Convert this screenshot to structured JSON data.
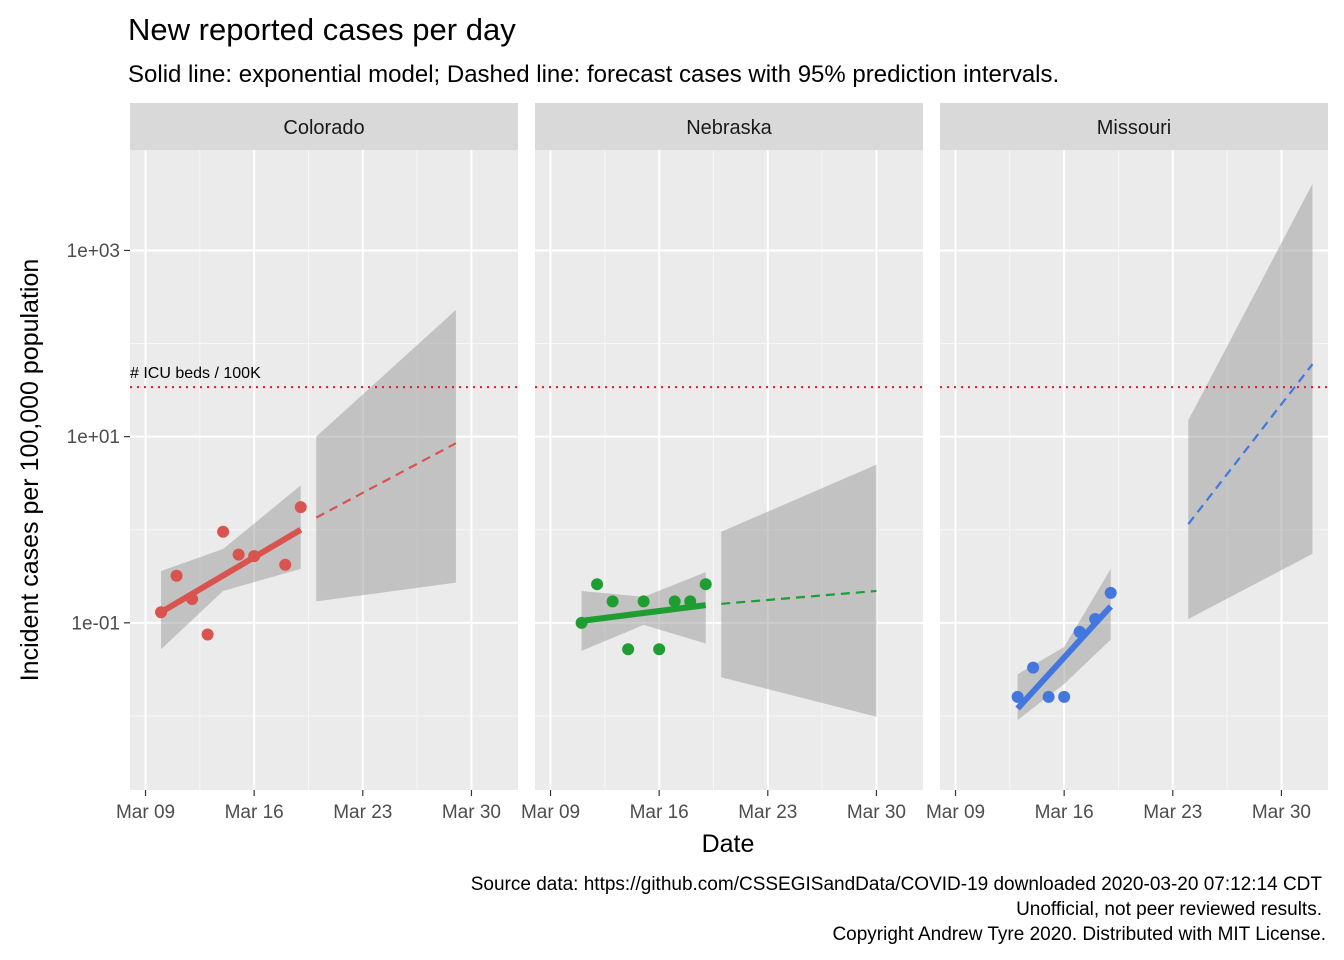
{
  "title": "New reported cases per day",
  "subtitle": "Solid line: exponential model; Dashed line: forecast cases with 95% prediction intervals.",
  "caption": [
    "Source data: https://github.com/CSSEGISandData/COVID-19 downloaded  2020-03-20 07:12:14 CDT",
    "Unofficial, not peer reviewed results.",
    "Copyright Andrew Tyre 2020. Distributed with MIT License."
  ],
  "chart_data": {
    "type": "scatter",
    "xlabel": "Date",
    "ylabel": "Incident cases per 100,000 population",
    "y_scale": "log10",
    "ylim": [
      0.0016,
      12000
    ],
    "y_ticks": [
      0.1,
      10,
      1000
    ],
    "y_tick_labels": [
      "1e-01",
      "1e+01",
      "1e+03"
    ],
    "xlim": [
      "2020-03-08",
      "2020-04-02"
    ],
    "x_ticks": [
      "2020-03-09",
      "2020-03-16",
      "2020-03-23",
      "2020-03-30"
    ],
    "x_tick_labels": [
      "Mar 09",
      "Mar 16",
      "Mar 23",
      "Mar 30"
    ],
    "grid": true,
    "reference_line": {
      "label": "# ICU beds / 100K",
      "y": 34,
      "color": "#e41a1c",
      "style": "dotted"
    },
    "panels": [
      {
        "name": "Colorado",
        "color": "#d9534f",
        "points": [
          {
            "x": "2020-03-10",
            "y": 0.13
          },
          {
            "x": "2020-03-11",
            "y": 0.32
          },
          {
            "x": "2020-03-12",
            "y": 0.18
          },
          {
            "x": "2020-03-13",
            "y": 0.075
          },
          {
            "x": "2020-03-14",
            "y": 0.95
          },
          {
            "x": "2020-03-15",
            "y": 0.54
          },
          {
            "x": "2020-03-16",
            "y": 0.52
          },
          {
            "x": "2020-03-18",
            "y": 0.42
          },
          {
            "x": "2020-03-19",
            "y": 1.75
          }
        ],
        "fit": [
          {
            "x": "2020-03-10",
            "y": 0.13
          },
          {
            "x": "2020-03-19",
            "y": 1.0
          }
        ],
        "fit_ci": [
          {
            "x": "2020-03-10",
            "lo": 0.052,
            "hi": 0.36
          },
          {
            "x": "2020-03-14",
            "lo": 0.22,
            "hi": 0.62
          },
          {
            "x": "2020-03-19",
            "lo": 0.38,
            "hi": 3.0
          }
        ],
        "forecast": [
          {
            "x": "2020-03-20",
            "y": 1.35
          },
          {
            "x": "2020-03-29",
            "y": 8.5
          }
        ],
        "forecast_pi": [
          {
            "x": "2020-03-20",
            "lo": 0.17,
            "hi": 10.0
          },
          {
            "x": "2020-03-29",
            "lo": 0.27,
            "hi": 230
          }
        ]
      },
      {
        "name": "Nebraska",
        "color": "#1e9e32",
        "points": [
          {
            "x": "2020-03-11",
            "y": 0.1
          },
          {
            "x": "2020-03-12",
            "y": 0.26
          },
          {
            "x": "2020-03-13",
            "y": 0.17
          },
          {
            "x": "2020-03-14",
            "y": 0.052
          },
          {
            "x": "2020-03-15",
            "y": 0.17
          },
          {
            "x": "2020-03-16",
            "y": 0.052
          },
          {
            "x": "2020-03-17",
            "y": 0.17
          },
          {
            "x": "2020-03-18",
            "y": 0.17
          },
          {
            "x": "2020-03-19",
            "y": 0.26
          }
        ],
        "fit": [
          {
            "x": "2020-03-11",
            "y": 0.105
          },
          {
            "x": "2020-03-19",
            "y": 0.155
          }
        ],
        "fit_ci": [
          {
            "x": "2020-03-11",
            "lo": 0.05,
            "hi": 0.22
          },
          {
            "x": "2020-03-15",
            "lo": 0.095,
            "hi": 0.19
          },
          {
            "x": "2020-03-19",
            "lo": 0.06,
            "hi": 0.35
          }
        ],
        "forecast": [
          {
            "x": "2020-03-20",
            "y": 0.16
          },
          {
            "x": "2020-03-30",
            "y": 0.22
          }
        ],
        "forecast_pi": [
          {
            "x": "2020-03-20",
            "lo": 0.026,
            "hi": 0.95
          },
          {
            "x": "2020-03-30",
            "lo": 0.0098,
            "hi": 5.0
          }
        ]
      },
      {
        "name": "Missouri",
        "color": "#4477dd",
        "points": [
          {
            "x": "2020-03-13",
            "y": 0.016
          },
          {
            "x": "2020-03-14",
            "y": 0.033
          },
          {
            "x": "2020-03-15",
            "y": 0.016
          },
          {
            "x": "2020-03-16",
            "y": 0.016
          },
          {
            "x": "2020-03-17",
            "y": 0.08
          },
          {
            "x": "2020-03-18",
            "y": 0.11
          },
          {
            "x": "2020-03-19",
            "y": 0.21
          }
        ],
        "fit": [
          {
            "x": "2020-03-13",
            "y": 0.012
          },
          {
            "x": "2020-03-19",
            "y": 0.15
          }
        ],
        "fit_ci": [
          {
            "x": "2020-03-13",
            "lo": 0.009,
            "hi": 0.028
          },
          {
            "x": "2020-03-16",
            "lo": 0.022,
            "hi": 0.055
          },
          {
            "x": "2020-03-19",
            "lo": 0.066,
            "hi": 0.38
          }
        ],
        "forecast": [
          {
            "x": "2020-03-24",
            "y": 1.15
          },
          {
            "x": "2020-04-01",
            "y": 60
          }
        ],
        "forecast_pi": [
          {
            "x": "2020-03-24",
            "lo": 0.11,
            "hi": 15
          },
          {
            "x": "2020-04-01",
            "lo": 0.55,
            "hi": 5200
          }
        ]
      }
    ]
  }
}
